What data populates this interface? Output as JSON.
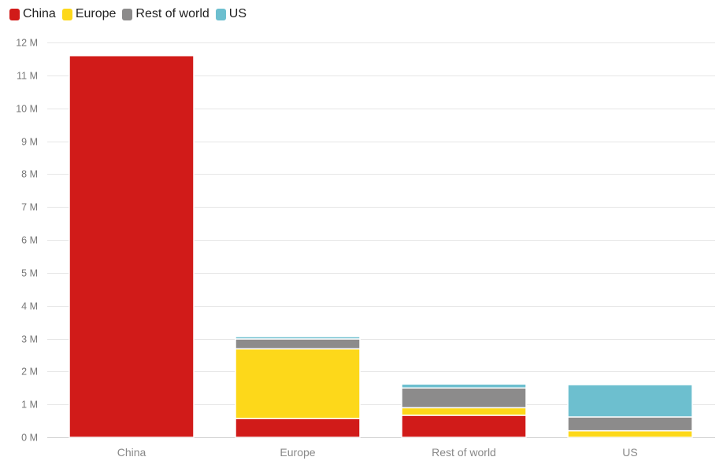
{
  "chart_data": {
    "type": "bar",
    "stacked": true,
    "categories": [
      "China",
      "Europe",
      "Rest of world",
      "US"
    ],
    "series": [
      {
        "name": "China",
        "color": "#d11b19",
        "values": [
          11.6,
          0.57,
          0.67,
          0.0
        ]
      },
      {
        "name": "Europe",
        "color": "#fdd81a",
        "values": [
          0.0,
          2.12,
          0.23,
          0.2
        ]
      },
      {
        "name": "Rest of world",
        "color": "#8c8b8b",
        "values": [
          0.0,
          0.3,
          0.6,
          0.42
        ]
      },
      {
        "name": "US",
        "color": "#6dbfcf",
        "values": [
          0.0,
          0.07,
          0.12,
          0.98
        ]
      }
    ],
    "y_ticks": [
      "0 M",
      "1 M",
      "2 M",
      "3 M",
      "4 M",
      "5 M",
      "6 M",
      "7 M",
      "8 M",
      "9 M",
      "10 M",
      "11 M",
      "12 M"
    ],
    "ylim": [
      0,
      12
    ],
    "grid": true,
    "legend_position": "top-left"
  }
}
